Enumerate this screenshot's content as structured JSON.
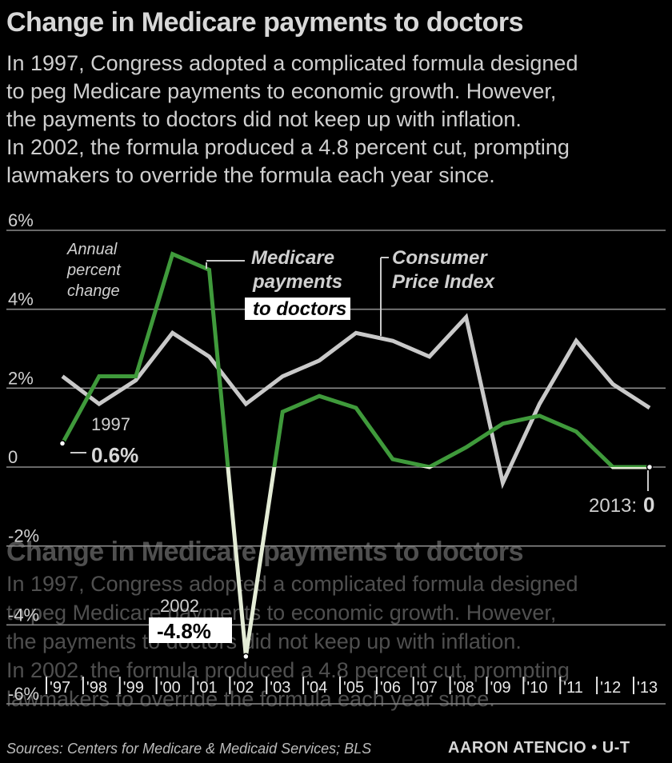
{
  "title": "Change in Medicare payments to doctors",
  "body_lines": [
    "In 1997, Congress adopted a complicated formula designed",
    "to peg Medicare payments to economic growth. However,",
    "the payments to doctors did not keep up with inflation.",
    "In 2002, the formula produced a 4.8 percent cut, prompting",
    "lawmakers to override the formula each year since."
  ],
  "source": "Sources: Centers for Medicare & Medicaid Services; BLS",
  "credit": "AARON ATENCIO • U-T",
  "colors": {
    "medicare": "#3f9a3b",
    "medicare_negative": "#e4ecd6",
    "cpi": "#c9c9c9",
    "grid": "#8a8a8a",
    "background": "#000000"
  },
  "annotations": {
    "annual": [
      "Annual",
      "percent",
      "change"
    ],
    "medicare_label": [
      "Medicare",
      "payments",
      "to doctors"
    ],
    "cpi_label": [
      "Consumer",
      "Price Index"
    ],
    "start_year": "1997",
    "start_value": "0.6%",
    "low_year": "2002",
    "low_value": "-4.8%",
    "end_label": "2013:",
    "end_value": "0"
  },
  "chart_data": {
    "type": "line",
    "title": "Change in Medicare payments to doctors",
    "ylabel": "Annual percent change",
    "ylim": [
      -6,
      6
    ],
    "y_ticks": [
      "6%",
      "4%",
      "2%",
      "0",
      "-2%",
      "-4%",
      "-6%"
    ],
    "y_tick_values": [
      6,
      4,
      2,
      0,
      -2,
      -4,
      -6
    ],
    "categories": [
      "'97",
      "'98",
      "'99",
      "'00",
      "'01",
      "'02",
      "'03",
      "'04",
      "'05",
      "'06",
      "'07",
      "'08",
      "'09",
      "'10",
      "'11",
      "'12",
      "'13"
    ],
    "grid": true,
    "series": [
      {
        "name": "Medicare payments to doctors",
        "values": [
          0.6,
          2.3,
          2.3,
          5.4,
          5.0,
          -4.8,
          1.4,
          1.8,
          1.5,
          0.2,
          0.0,
          0.5,
          1.1,
          1.3,
          0.9,
          0.0,
          0.0
        ]
      },
      {
        "name": "Consumer Price Index",
        "values": [
          2.3,
          1.6,
          2.2,
          3.4,
          2.8,
          1.6,
          2.3,
          2.7,
          3.4,
          3.2,
          2.8,
          3.8,
          -0.4,
          1.6,
          3.2,
          2.1,
          1.5
        ]
      }
    ]
  }
}
